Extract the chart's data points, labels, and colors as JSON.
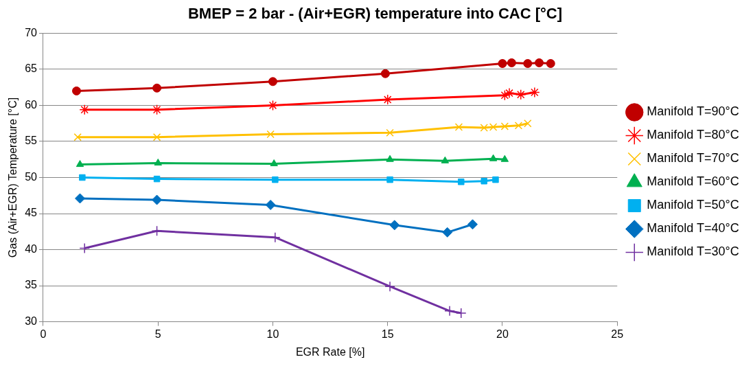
{
  "chart_data": {
    "type": "line",
    "title": "BMEP = 2 bar - (Air+EGR) temperature into CAC [°C]",
    "xlabel": "EGR Rate [%]",
    "ylabel": "Gas (Air+EGR) Temperature [°C]",
    "xlim": [
      0,
      25
    ],
    "xticks": [
      0,
      5,
      10,
      15,
      20,
      25
    ],
    "ylim": [
      30,
      70
    ],
    "yticks": [
      30,
      35,
      40,
      45,
      50,
      55,
      60,
      65,
      70
    ],
    "grid": "y",
    "legend": "right",
    "line_style": "solid",
    "series": [
      {
        "name": "Manifold T=90°C",
        "color": "#c00000",
        "marker": "circle",
        "x": [
          1.45,
          4.95,
          10.0,
          14.9,
          20.0,
          20.4,
          21.1,
          21.6,
          22.1
        ],
        "values": [
          62.0,
          62.4,
          63.3,
          64.4,
          65.8,
          65.9,
          65.8,
          65.9,
          65.8
        ]
      },
      {
        "name": "Manifold T=80°C",
        "color": "#ff0000",
        "marker": "cross",
        "x": [
          1.8,
          4.95,
          10.0,
          15.0,
          20.1,
          20.3,
          20.8,
          21.4
        ],
        "values": [
          59.4,
          59.4,
          60.0,
          60.8,
          61.4,
          61.7,
          61.5,
          61.8
        ]
      },
      {
        "name": "Manifold T=70°C",
        "color": "#ffc000",
        "marker": "x",
        "x": [
          1.5,
          4.95,
          9.9,
          15.1,
          18.1,
          19.2,
          19.6,
          20.1,
          20.7,
          21.1
        ],
        "values": [
          55.6,
          55.6,
          56.0,
          56.2,
          57.0,
          56.9,
          57.0,
          57.1,
          57.2,
          57.5
        ]
      },
      {
        "name": "Manifold T=60°C",
        "color": "#00b050",
        "marker": "triangle",
        "x": [
          1.6,
          5.0,
          10.05,
          15.1,
          17.5,
          19.6,
          20.1
        ],
        "values": [
          51.8,
          52.0,
          51.9,
          52.5,
          52.3,
          52.6,
          52.5
        ]
      },
      {
        "name": "Manifold T=50°C",
        "color": "#00b0f0",
        "marker": "square",
        "x": [
          1.7,
          4.95,
          10.1,
          15.1,
          18.2,
          19.2,
          19.7
        ],
        "values": [
          50.0,
          49.8,
          49.7,
          49.7,
          49.4,
          49.5,
          49.7
        ]
      },
      {
        "name": "Manifold T=40°C",
        "color": "#0070c0",
        "marker": "diamond",
        "x": [
          1.6,
          4.95,
          9.9,
          15.3,
          17.6,
          18.7
        ],
        "values": [
          47.1,
          46.9,
          46.2,
          43.4,
          42.4,
          43.5
        ]
      },
      {
        "name": "Manifold T=30°C",
        "color": "#7030a0",
        "marker": "plus",
        "x": [
          1.8,
          4.95,
          10.1,
          15.1,
          17.7,
          18.2
        ],
        "values": [
          40.2,
          42.6,
          41.7,
          34.9,
          31.5,
          31.2
        ]
      }
    ]
  }
}
